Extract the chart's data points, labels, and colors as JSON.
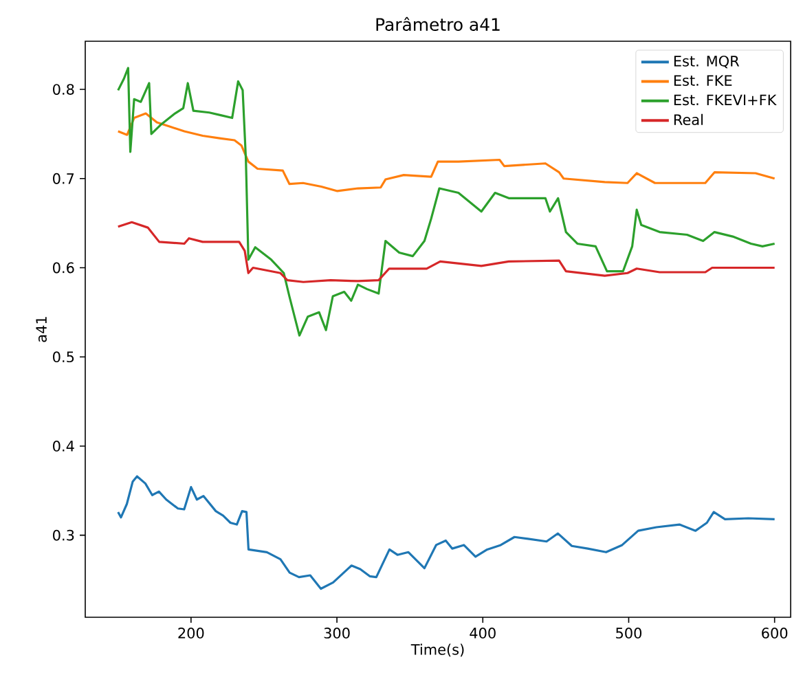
{
  "chart_data": {
    "type": "line",
    "title": "Parâmetro a41",
    "xlabel": "Time(s)",
    "ylabel": "a41",
    "xlim": [
      127.5,
      611
    ],
    "ylim": [
      0.208,
      0.854
    ],
    "xticks": [
      200,
      300,
      400,
      500,
      600
    ],
    "yticks": [
      0.3,
      0.4,
      0.5,
      0.6,
      0.7,
      0.8
    ],
    "legend": "top right",
    "grid": false,
    "marker": "none",
    "line_style": "solid",
    "series": [
      {
        "name": "Est. MQR",
        "color": "#1f77b4",
        "x": [
          150,
          152,
          156,
          160,
          163,
          168.7,
          173.4,
          178,
          183,
          191,
          195.3,
          200,
          204,
          208.5,
          217,
          222,
          227,
          231.4,
          235,
          238,
          239.4,
          252,
          261.3,
          267.6,
          274,
          281.7,
          289,
          297.4,
          302,
          310,
          316,
          322.5,
          327,
          336,
          341.5,
          349,
          360,
          368,
          374.6,
          379,
          387,
          395,
          403,
          412.3,
          421.7,
          431,
          443.7,
          451.5,
          461,
          472,
          484.5,
          495.5,
          506.5,
          519,
          534.8,
          545.8,
          553.6,
          558.3,
          566,
          582,
          600
        ],
        "values": [
          0.326,
          0.32,
          0.335,
          0.36,
          0.366,
          0.358,
          0.345,
          0.349,
          0.34,
          0.33,
          0.329,
          0.354,
          0.34,
          0.344,
          0.327,
          0.322,
          0.314,
          0.312,
          0.327,
          0.326,
          0.284,
          0.281,
          0.273,
          0.258,
          0.253,
          0.255,
          0.24,
          0.247,
          0.254,
          0.266,
          0.262,
          0.254,
          0.253,
          0.284,
          0.278,
          0.281,
          0.263,
          0.289,
          0.294,
          0.285,
          0.289,
          0.276,
          0.284,
          0.289,
          0.298,
          0.296,
          0.293,
          0.302,
          0.288,
          0.285,
          0.281,
          0.289,
          0.305,
          0.309,
          0.312,
          0.305,
          0.314,
          0.326,
          0.318,
          0.319,
          0.318
        ]
      },
      {
        "name": "Est. FKE",
        "color": "#ff7f0e",
        "x": [
          150,
          156.2,
          161,
          169,
          176.6,
          186,
          195.4,
          208,
          220.4,
          229.8,
          234.6,
          239.3,
          245.6,
          262.9,
          267.4,
          276.8,
          289.3,
          300.3,
          314.4,
          330,
          333.3,
          345.8,
          364.6,
          369.2,
          383.3,
          411.5,
          414.7,
          442.9,
          452.3,
          455.4,
          483.6,
          499.2,
          505.5,
          518,
          552.5,
          558.8,
          587,
          600
        ],
        "values": [
          0.753,
          0.749,
          0.768,
          0.773,
          0.763,
          0.758,
          0.753,
          0.748,
          0.745,
          0.743,
          0.737,
          0.719,
          0.711,
          0.709,
          0.694,
          0.695,
          0.691,
          0.686,
          0.689,
          0.69,
          0.699,
          0.704,
          0.702,
          0.719,
          0.719,
          0.721,
          0.714,
          0.717,
          0.707,
          0.7,
          0.696,
          0.695,
          0.706,
          0.695,
          0.695,
          0.707,
          0.706,
          0.7
        ]
      },
      {
        "name": "Est. FKEVI+FK",
        "color": "#2ca02c",
        "x": [
          150,
          154,
          156.9,
          158.4,
          161,
          165.6,
          171.3,
          172.8,
          179.7,
          189,
          194.7,
          197.8,
          201.6,
          212.5,
          220.4,
          228.2,
          232.3,
          235.4,
          237.6,
          239.3,
          244,
          255,
          263.6,
          267.4,
          274.3,
          280,
          287.8,
          292.5,
          297.2,
          305,
          309.8,
          314.4,
          320.7,
          328.6,
          333.3,
          342.7,
          352,
          360,
          364.6,
          370.2,
          383.3,
          399,
          408.4,
          417.8,
          442.9,
          446,
          451.6,
          457,
          464.8,
          477.3,
          485.1,
          496.1,
          502.4,
          505.5,
          508.6,
          521.2,
          540,
          551,
          558.8,
          571.3,
          583.8,
          591.7,
          600
        ],
        "values": [
          0.799,
          0.812,
          0.824,
          0.73,
          0.789,
          0.786,
          0.807,
          0.75,
          0.761,
          0.773,
          0.779,
          0.807,
          0.776,
          0.774,
          0.771,
          0.768,
          0.809,
          0.799,
          0.722,
          0.609,
          0.623,
          0.609,
          0.594,
          0.568,
          0.524,
          0.545,
          0.55,
          0.53,
          0.568,
          0.573,
          0.563,
          0.581,
          0.576,
          0.571,
          0.63,
          0.617,
          0.613,
          0.63,
          0.655,
          0.689,
          0.684,
          0.663,
          0.684,
          0.678,
          0.678,
          0.663,
          0.678,
          0.64,
          0.627,
          0.624,
          0.596,
          0.596,
          0.624,
          0.665,
          0.648,
          0.64,
          0.637,
          0.63,
          0.64,
          0.635,
          0.627,
          0.624,
          0.627
        ]
      },
      {
        "name": "Real",
        "color": "#d62728",
        "x": [
          150,
          159.4,
          170.4,
          178.2,
          195.4,
          198.6,
          208,
          233,
          236.8,
          239.3,
          242.5,
          261.3,
          266,
          277,
          295.7,
          314.4,
          328.6,
          335.8,
          361.5,
          370.8,
          399,
          417.8,
          452.3,
          457,
          483.6,
          499.2,
          505.5,
          521.2,
          552.5,
          557.2,
          600
        ],
        "values": [
          0.646,
          0.651,
          0.645,
          0.629,
          0.627,
          0.633,
          0.629,
          0.629,
          0.619,
          0.594,
          0.6,
          0.594,
          0.586,
          0.584,
          0.586,
          0.585,
          0.586,
          0.599,
          0.599,
          0.607,
          0.602,
          0.607,
          0.608,
          0.596,
          0.591,
          0.594,
          0.599,
          0.595,
          0.595,
          0.6,
          0.6
        ]
      }
    ]
  }
}
